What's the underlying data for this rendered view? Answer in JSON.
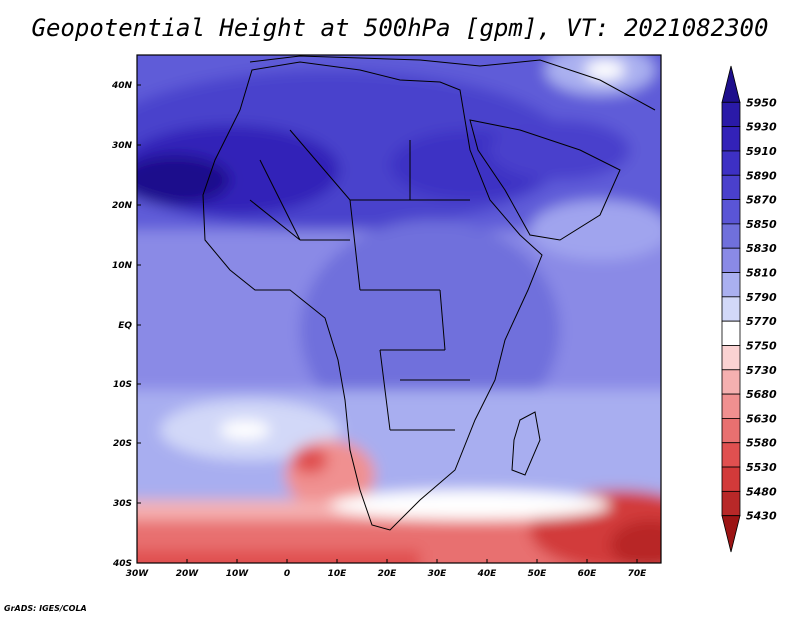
{
  "title": "Geopotential Height at 500hPa [gpm], VT: 2021082300",
  "credit": "GrADS: IGES/COLA",
  "axes": {
    "lat_labels": [
      "40N",
      "30N",
      "20N",
      "10N",
      "EQ",
      "10S",
      "20S",
      "30S",
      "40S"
    ],
    "lon_labels": [
      "30W",
      "20W",
      "10W",
      "0",
      "10E",
      "20E",
      "30E",
      "40E",
      "50E",
      "60E",
      "70E"
    ]
  },
  "colorbar": {
    "levels": [
      "5950",
      "5930",
      "5910",
      "5890",
      "5870",
      "5850",
      "5830",
      "5810",
      "5790",
      "5770",
      "5750",
      "5730",
      "5680",
      "5630",
      "5580",
      "5530",
      "5480",
      "5430"
    ],
    "colors": [
      "#1e0f8c",
      "#2a1aa8",
      "#3322b8",
      "#3d30c4",
      "#4a40cc",
      "#5a55d6",
      "#7070dc",
      "#8a8ae6",
      "#aab0f0",
      "#d2d8f8",
      "#ffffff",
      "#fad2d2",
      "#f5b0b0",
      "#f09090",
      "#e87070",
      "#e05050",
      "#d23a3a",
      "#b82828",
      "#9c1414"
    ]
  },
  "chart_data": {
    "type": "heatmap",
    "title": "Geopotential Height at 500hPa [gpm], VT: 2021082300",
    "variable": "Geopotential Height at 500hPa",
    "units": "gpm",
    "valid_time": "2021082300",
    "lon_range": [
      -30,
      75
    ],
    "lat_range": [
      -40,
      45
    ],
    "contour_levels": [
      5430,
      5480,
      5530,
      5580,
      5630,
      5680,
      5730,
      5750,
      5770,
      5790,
      5810,
      5830,
      5850,
      5870,
      5890,
      5910,
      5930,
      5950
    ]
  }
}
